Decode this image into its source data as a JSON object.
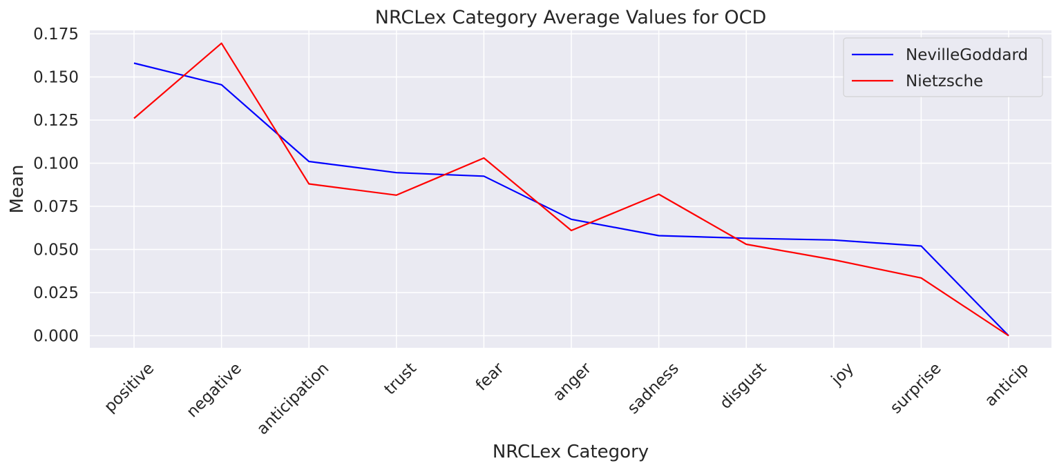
{
  "chart_data": {
    "type": "line",
    "title": "NRCLex Category Average Values for OCD",
    "xlabel": "NRCLex Category",
    "ylabel": "Mean",
    "categories": [
      "positive",
      "negative",
      "anticipation",
      "trust",
      "fear",
      "anger",
      "sadness",
      "disgust",
      "joy",
      "surprise",
      "anticip"
    ],
    "ylim": [
      -0.007,
      0.177
    ],
    "yticks": [
      0.0,
      0.025,
      0.05,
      0.075,
      0.1,
      0.125,
      0.15,
      0.175
    ],
    "ytick_labels": [
      "0.000",
      "0.025",
      "0.050",
      "0.075",
      "0.100",
      "0.125",
      "0.150",
      "0.175"
    ],
    "grid": true,
    "legend_position": "top-right",
    "series": [
      {
        "name": "NevilleGoddard",
        "color": "#0000ff",
        "values": [
          0.158,
          0.1455,
          0.101,
          0.0945,
          0.0925,
          0.0675,
          0.058,
          0.0565,
          0.0555,
          0.052,
          0.0
        ]
      },
      {
        "name": "Nietzsche",
        "color": "#ff0000",
        "values": [
          0.126,
          0.1695,
          0.088,
          0.0815,
          0.103,
          0.061,
          0.082,
          0.053,
          0.044,
          0.0335,
          0.0
        ]
      }
    ]
  }
}
